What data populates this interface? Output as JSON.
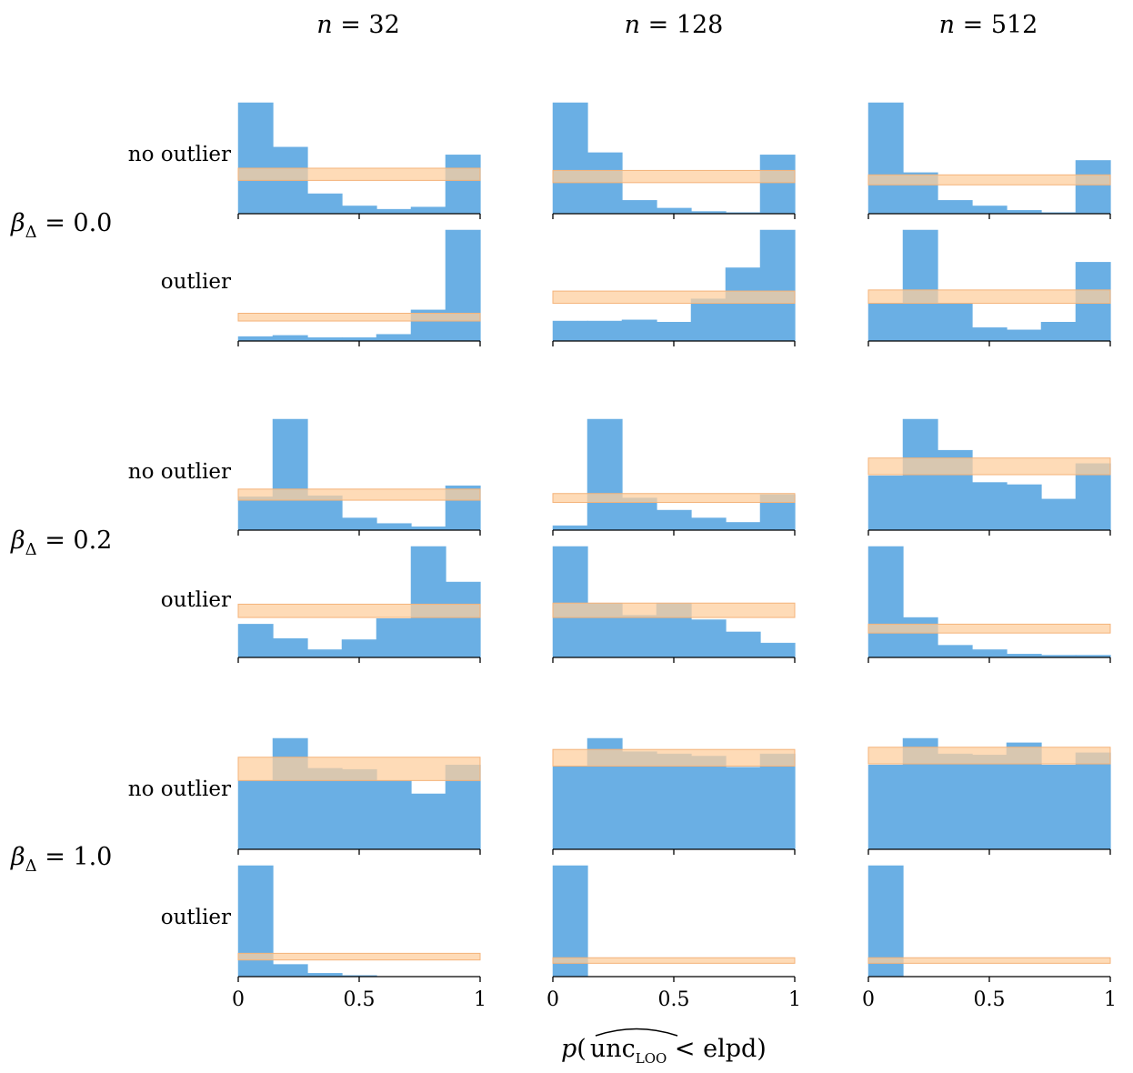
{
  "figure": {
    "xlabel": {
      "p": "p",
      "open": "(",
      "unc": "unc",
      "sub": "LOO",
      "rest": " < elpd)"
    },
    "colors": {
      "bar": "#6aafe4",
      "band": "#fdcf9f",
      "band_edge": "#f4b37a"
    },
    "columns": [
      {
        "n_sym": "n",
        "eq": " = 32"
      },
      {
        "n_sym": "n",
        "eq": " = 128"
      },
      {
        "n_sym": "n",
        "eq": " = 512"
      }
    ],
    "row_groups": [
      {
        "beta": {
          "sym": "β",
          "sub": "Δ",
          "eq": " = 0.0"
        },
        "rows": [
          {
            "label": "no outlier"
          },
          {
            "label": "outlier"
          }
        ]
      },
      {
        "beta": {
          "sym": "β",
          "sub": "Δ",
          "eq": " = 0.2"
        },
        "rows": [
          {
            "label": "no outlier"
          },
          {
            "label": "outlier"
          }
        ]
      },
      {
        "beta": {
          "sym": "β",
          "sub": "Δ",
          "eq": " = 1.0"
        },
        "rows": [
          {
            "label": "no outlier"
          },
          {
            "label": "outlier"
          }
        ]
      }
    ]
  },
  "chart_data": {
    "type": "histogram-grid",
    "title": "",
    "xlabel": "p( unc_LOO < elpd)",
    "ylabel": "",
    "bins": 7,
    "x_range": [
      0,
      1
    ],
    "xticks": [
      "0",
      "0.5",
      "1"
    ],
    "columns": [
      "n = 32",
      "n = 128",
      "n = 512"
    ],
    "rows": [
      "β_Δ = 0.0 no outlier",
      "β_Δ = 0.0 outlier",
      "β_Δ = 0.2 no outlier",
      "β_Δ = 0.2 outlier",
      "β_Δ = 1.0 no outlier",
      "β_Δ = 1.0 outlier"
    ],
    "panels": [
      {
        "beta": "0.0",
        "case": "no outlier",
        "n": 32,
        "ymax": 1,
        "values": [
          1.0,
          0.6,
          0.18,
          0.07,
          0.04,
          0.06,
          0.53
        ],
        "band": [
          0.3,
          0.41
        ]
      },
      {
        "beta": "0.0",
        "case": "no outlier",
        "n": 128,
        "ymax": 1,
        "values": [
          1.0,
          0.55,
          0.12,
          0.05,
          0.02,
          0.01,
          0.53
        ],
        "band": [
          0.28,
          0.39
        ]
      },
      {
        "beta": "0.0",
        "case": "no outlier",
        "n": 512,
        "ymax": 1,
        "values": [
          1.0,
          0.37,
          0.12,
          0.07,
          0.03,
          0.01,
          0.48
        ],
        "band": [
          0.26,
          0.35
        ]
      },
      {
        "beta": "0.0",
        "case": "outlier",
        "n": 32,
        "ymax": 1,
        "values": [
          0.04,
          0.05,
          0.03,
          0.03,
          0.06,
          0.28,
          1.0
        ],
        "band": [
          0.18,
          0.25
        ]
      },
      {
        "beta": "0.0",
        "case": "outlier",
        "n": 128,
        "ymax": 1,
        "values": [
          0.18,
          0.18,
          0.19,
          0.17,
          0.38,
          0.66,
          1.0
        ],
        "band": [
          0.34,
          0.45
        ]
      },
      {
        "beta": "0.0",
        "case": "outlier",
        "n": 512,
        "ymax": 1,
        "values": [
          0.34,
          1.0,
          0.34,
          0.12,
          0.1,
          0.17,
          0.71
        ],
        "band": [
          0.34,
          0.46
        ]
      },
      {
        "beta": "0.2",
        "case": "no outlier",
        "n": 32,
        "ymax": 1,
        "values": [
          0.3,
          1.0,
          0.31,
          0.11,
          0.06,
          0.03,
          0.4
        ],
        "band": [
          0.27,
          0.37
        ]
      },
      {
        "beta": "0.2",
        "case": "no outlier",
        "n": 128,
        "ymax": 1,
        "values": [
          0.04,
          1.0,
          0.29,
          0.18,
          0.11,
          0.07,
          0.32
        ],
        "band": [
          0.25,
          0.33
        ]
      },
      {
        "beta": "0.2",
        "case": "no outlier",
        "n": 512,
        "ymax": 1,
        "values": [
          0.49,
          1.0,
          0.72,
          0.43,
          0.41,
          0.28,
          0.6
        ],
        "band": [
          0.5,
          0.65
        ]
      },
      {
        "beta": "0.2",
        "case": "outlier",
        "n": 32,
        "ymax": 1,
        "values": [
          0.3,
          0.17,
          0.07,
          0.16,
          0.35,
          1.0,
          0.68
        ],
        "band": [
          0.36,
          0.48
        ]
      },
      {
        "beta": "0.2",
        "case": "outlier",
        "n": 128,
        "ymax": 1,
        "values": [
          1.0,
          0.49,
          0.38,
          0.49,
          0.34,
          0.23,
          0.13
        ],
        "band": [
          0.36,
          0.49
        ]
      },
      {
        "beta": "0.2",
        "case": "outlier",
        "n": 512,
        "ymax": 1,
        "values": [
          1.0,
          0.36,
          0.11,
          0.07,
          0.03,
          0.02,
          0.02
        ],
        "band": [
          0.22,
          0.3
        ]
      },
      {
        "beta": "1.0",
        "case": "no outlier",
        "n": 32,
        "ymax": 1,
        "values": [
          0.62,
          1.0,
          0.73,
          0.72,
          0.62,
          0.5,
          0.76
        ],
        "band": [
          0.62,
          0.83
        ]
      },
      {
        "beta": "1.0",
        "case": "no outlier",
        "n": 128,
        "ymax": 1,
        "values": [
          0.75,
          1.0,
          0.88,
          0.86,
          0.84,
          0.74,
          0.86
        ],
        "band": [
          0.75,
          0.9
        ]
      },
      {
        "beta": "1.0",
        "case": "no outlier",
        "n": 512,
        "ymax": 1,
        "values": [
          0.76,
          1.0,
          0.86,
          0.85,
          0.96,
          0.76,
          0.87
        ],
        "band": [
          0.77,
          0.92
        ]
      },
      {
        "beta": "1.0",
        "case": "outlier",
        "n": 32,
        "ymax": 1,
        "values": [
          1.0,
          0.11,
          0.03,
          0.01,
          0.0,
          0.0,
          0.0
        ],
        "band": [
          0.15,
          0.21
        ]
      },
      {
        "beta": "1.0",
        "case": "outlier",
        "n": 128,
        "ymax": 1,
        "values": [
          1.0,
          0.0,
          0.0,
          0.0,
          0.0,
          0.0,
          0.0
        ],
        "band": [
          0.12,
          0.17
        ]
      },
      {
        "beta": "1.0",
        "case": "outlier",
        "n": 512,
        "ymax": 1,
        "values": [
          1.0,
          0.0,
          0.0,
          0.0,
          0.0,
          0.0,
          0.0
        ],
        "band": [
          0.12,
          0.17
        ]
      }
    ]
  }
}
